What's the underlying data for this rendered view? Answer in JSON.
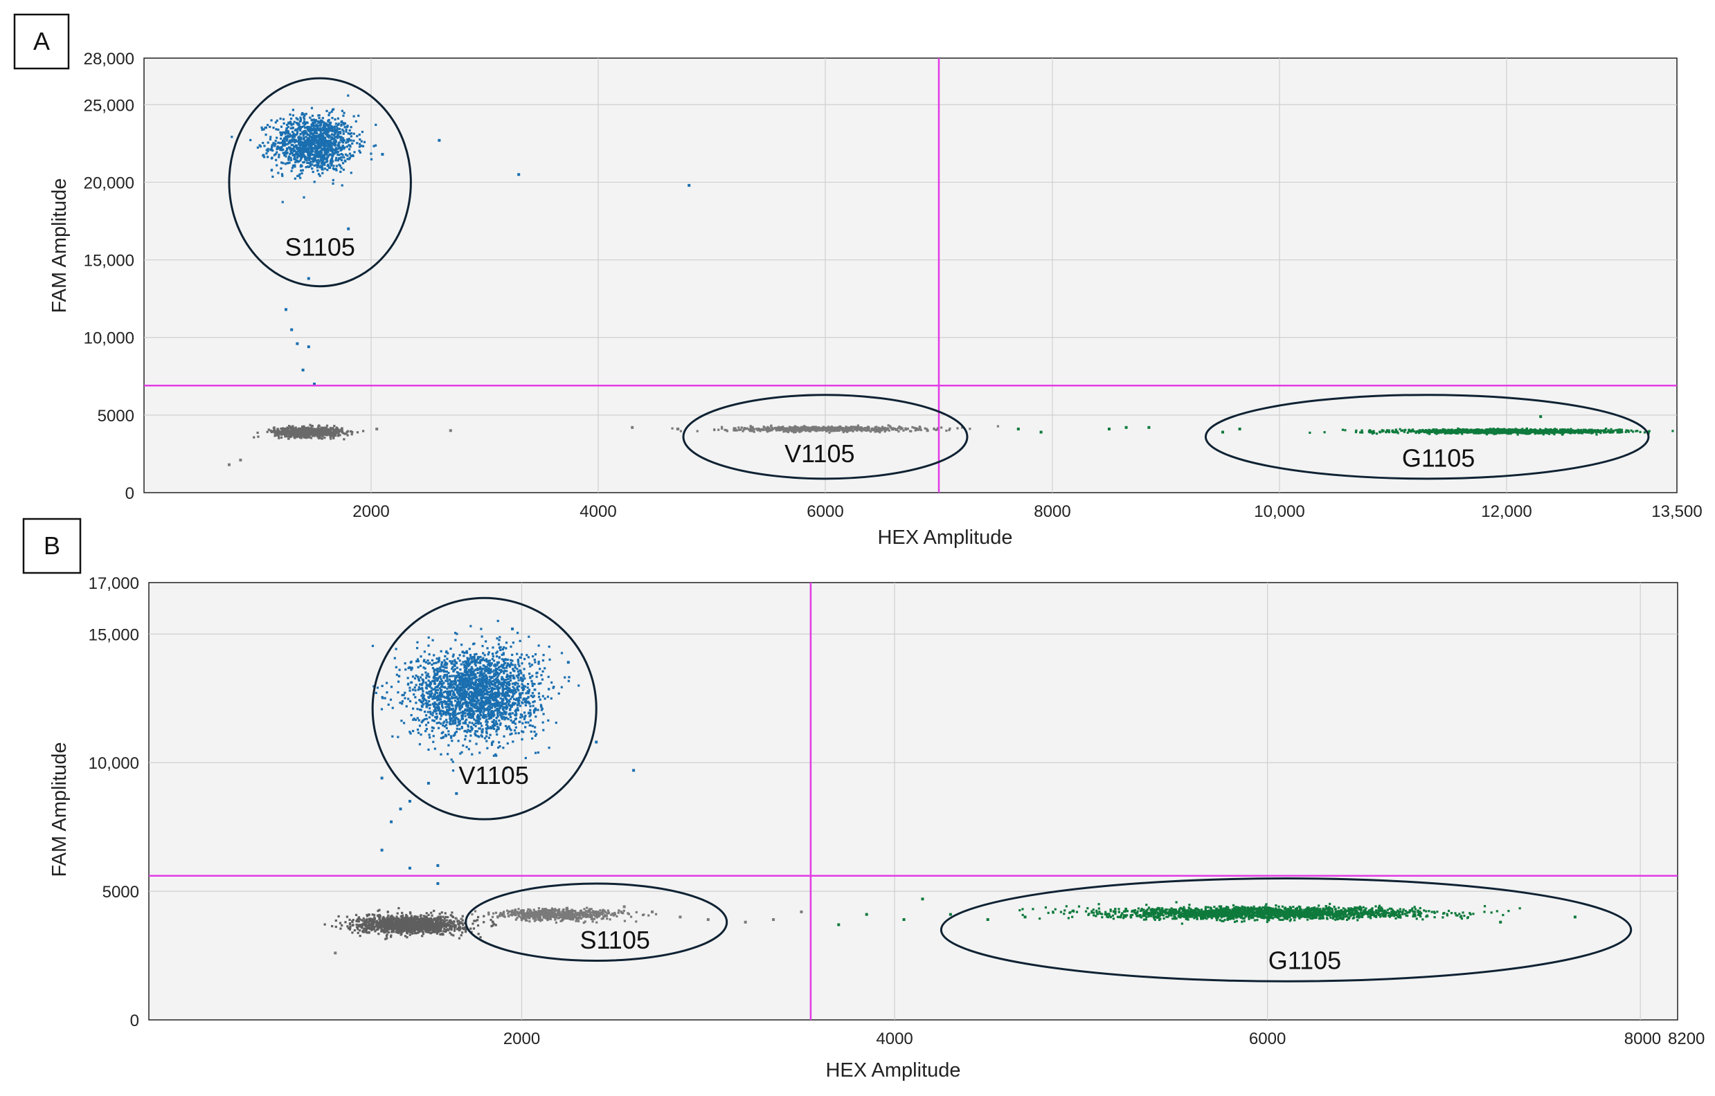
{
  "chart_data": [
    {
      "panel": "A",
      "type": "scatter",
      "xlabel": "HEX Amplitude",
      "ylabel": "FAM Amplitude",
      "xlim": [
        0,
        13500
      ],
      "ylim": [
        0,
        28000
      ],
      "x_ticks": [
        2000,
        4000,
        6000,
        8000,
        10000,
        12000,
        13500
      ],
      "x_tick_labels": [
        "2000",
        "4000",
        "6000",
        "8000",
        "10,000",
        "12,000",
        "13,500"
      ],
      "y_ticks": [
        0,
        5000,
        10000,
        15000,
        20000,
        25000,
        28000
      ],
      "y_tick_labels": [
        "0",
        "5000",
        "10,000",
        "15,000",
        "20,000",
        "25,000",
        "28,000"
      ],
      "threshold_x": 7000,
      "threshold_y": 6900,
      "clusters": [
        {
          "name": "FAM+ (blue)",
          "color": "#1a6fb0",
          "center": [
            1500,
            22500
          ],
          "spread": [
            180,
            900
          ],
          "count": 1200
        },
        {
          "name": "Double negative (gray)",
          "color": "#6a6a6a",
          "center": [
            1450,
            3900
          ],
          "spread": [
            150,
            160
          ],
          "count": 700
        },
        {
          "name": "V1105 HEX (gray)",
          "color": "#7a7a7a",
          "center": [
            6000,
            4100
          ],
          "spread": [
            420,
            80
          ],
          "count": 600
        },
        {
          "name": "G1105 HEX+ (green)",
          "color": "#0e7a3c",
          "center": [
            12000,
            3950
          ],
          "spread": [
            480,
            60
          ],
          "count": 1300
        }
      ],
      "outliers": [
        {
          "x": 1250,
          "y": 11800,
          "c": "b"
        },
        {
          "x": 1300,
          "y": 10500,
          "c": "b"
        },
        {
          "x": 1350,
          "y": 9600,
          "c": "b"
        },
        {
          "x": 1450,
          "y": 9400,
          "c": "b"
        },
        {
          "x": 1400,
          "y": 7900,
          "c": "b"
        },
        {
          "x": 1500,
          "y": 7000,
          "c": "b"
        },
        {
          "x": 1450,
          "y": 13800,
          "c": "b"
        },
        {
          "x": 2600,
          "y": 22700,
          "c": "b"
        },
        {
          "x": 3300,
          "y": 20500,
          "c": "b"
        },
        {
          "x": 4800,
          "y": 19800,
          "c": "b"
        },
        {
          "x": 2100,
          "y": 21800,
          "c": "b"
        },
        {
          "x": 1800,
          "y": 17000,
          "c": "b"
        },
        {
          "x": 750,
          "y": 1800,
          "c": "g"
        },
        {
          "x": 850,
          "y": 2100,
          "c": "g"
        },
        {
          "x": 2050,
          "y": 4100,
          "c": "g"
        },
        {
          "x": 2700,
          "y": 4000,
          "c": "g"
        },
        {
          "x": 4300,
          "y": 4200,
          "c": "g"
        },
        {
          "x": 4700,
          "y": 4100,
          "c": "g"
        },
        {
          "x": 6900,
          "y": 4000,
          "c": "g"
        },
        {
          "x": 7700,
          "y": 4100,
          "c": "e"
        },
        {
          "x": 7900,
          "y": 3900,
          "c": "e"
        },
        {
          "x": 8500,
          "y": 4100,
          "c": "e"
        },
        {
          "x": 8650,
          "y": 4200,
          "c": "e"
        },
        {
          "x": 8850,
          "y": 4200,
          "c": "e"
        },
        {
          "x": 9500,
          "y": 3900,
          "c": "e"
        },
        {
          "x": 9650,
          "y": 4100,
          "c": "e"
        },
        {
          "x": 13000,
          "y": 3900,
          "c": "e"
        },
        {
          "x": 12300,
          "y": 4900,
          "c": "e"
        }
      ],
      "annotations": [
        {
          "text": "S1105",
          "ellipse_center": [
            1550,
            20000
          ],
          "ellipse_radii": [
            800,
            6700
          ],
          "label_at": [
            1550,
            15800
          ]
        },
        {
          "text": "V1105",
          "ellipse_center": [
            6000,
            3600
          ],
          "ellipse_radii": [
            1250,
            2700
          ],
          "label_at": [
            5950,
            2500
          ]
        },
        {
          "text": "G1105",
          "ellipse_center": [
            11300,
            3600
          ],
          "ellipse_radii": [
            1950,
            2700
          ],
          "label_at": [
            11400,
            2200
          ]
        }
      ]
    },
    {
      "panel": "B",
      "type": "scatter",
      "xlabel": "HEX Amplitude",
      "ylabel": "FAM Amplitude",
      "xlim": [
        0,
        8200
      ],
      "ylim": [
        0,
        17000
      ],
      "x_ticks": [
        2000,
        4000,
        6000,
        8000,
        8200
      ],
      "x_tick_labels": [
        "2000",
        "4000",
        "6000",
        "8000",
        "8200"
      ],
      "y_ticks": [
        0,
        5000,
        10000,
        15000,
        17000
      ],
      "y_tick_labels": [
        "0",
        "5000",
        "10,000",
        "15,000",
        "17,000"
      ],
      "threshold_x": 3550,
      "threshold_y": 5600,
      "clusters": [
        {
          "name": "FAM+ (blue)",
          "color": "#1a6fb0",
          "center": [
            1750,
            12700
          ],
          "spread": [
            170,
            850
          ],
          "count": 2200
        },
        {
          "name": "Double negative (gray)",
          "color": "#5f5f5f",
          "center": [
            1400,
            3700
          ],
          "spread": [
            140,
            170
          ],
          "count": 1300
        },
        {
          "name": "S1105 HEX (gray)",
          "color": "#7a7a7a",
          "center": [
            2200,
            4100
          ],
          "spread": [
            170,
            110
          ],
          "count": 600
        },
        {
          "name": "G1105 HEX+ (green)",
          "color": "#0e7a3c",
          "center": [
            6000,
            4150
          ],
          "spread": [
            420,
            110
          ],
          "count": 2000
        }
      ],
      "outliers": [
        {
          "x": 1250,
          "y": 9400,
          "c": "b"
        },
        {
          "x": 1350,
          "y": 8200,
          "c": "b"
        },
        {
          "x": 1300,
          "y": 7700,
          "c": "b"
        },
        {
          "x": 1250,
          "y": 6600,
          "c": "b"
        },
        {
          "x": 1400,
          "y": 5900,
          "c": "b"
        },
        {
          "x": 1550,
          "y": 6000,
          "c": "b"
        },
        {
          "x": 1550,
          "y": 5300,
          "c": "b"
        },
        {
          "x": 1650,
          "y": 8800,
          "c": "b"
        },
        {
          "x": 1500,
          "y": 9200,
          "c": "b"
        },
        {
          "x": 2600,
          "y": 9700,
          "c": "b"
        },
        {
          "x": 2400,
          "y": 10800,
          "c": "b"
        },
        {
          "x": 2250,
          "y": 13900,
          "c": "b"
        },
        {
          "x": 1950,
          "y": 15200,
          "c": "b"
        },
        {
          "x": 1400,
          "y": 8500,
          "c": "b"
        },
        {
          "x": 1000,
          "y": 2600,
          "c": "g"
        },
        {
          "x": 2700,
          "y": 4200,
          "c": "g"
        },
        {
          "x": 2850,
          "y": 4000,
          "c": "g"
        },
        {
          "x": 3000,
          "y": 3900,
          "c": "g"
        },
        {
          "x": 3200,
          "y": 3800,
          "c": "g"
        },
        {
          "x": 3350,
          "y": 3900,
          "c": "g"
        },
        {
          "x": 3500,
          "y": 4200,
          "c": "g"
        },
        {
          "x": 2550,
          "y": 4400,
          "c": "g"
        },
        {
          "x": 3700,
          "y": 3700,
          "c": "e"
        },
        {
          "x": 3850,
          "y": 4100,
          "c": "e"
        },
        {
          "x": 4050,
          "y": 3900,
          "c": "e"
        },
        {
          "x": 4150,
          "y": 4700,
          "c": "e"
        },
        {
          "x": 4300,
          "y": 4100,
          "c": "e"
        },
        {
          "x": 4500,
          "y": 3900,
          "c": "e"
        },
        {
          "x": 4700,
          "y": 4000,
          "c": "e"
        },
        {
          "x": 7250,
          "y": 3800,
          "c": "e"
        },
        {
          "x": 7650,
          "y": 4000,
          "c": "e"
        }
      ],
      "annotations": [
        {
          "text": "V1105",
          "ellipse_center": [
            1800,
            12100
          ],
          "ellipse_radii": [
            600,
            4300
          ],
          "label_at": [
            1850,
            9500
          ]
        },
        {
          "text": "S1105",
          "ellipse_center": [
            2400,
            3800
          ],
          "ellipse_radii": [
            700,
            1500
          ],
          "label_at": [
            2500,
            3100
          ]
        },
        {
          "text": "G1105",
          "ellipse_center": [
            6100,
            3500
          ],
          "ellipse_radii": [
            1850,
            2000
          ],
          "label_at": [
            6200,
            2300
          ]
        }
      ]
    }
  ],
  "panels": {
    "a": {
      "letter": "A"
    },
    "b": {
      "letter": "B"
    }
  }
}
